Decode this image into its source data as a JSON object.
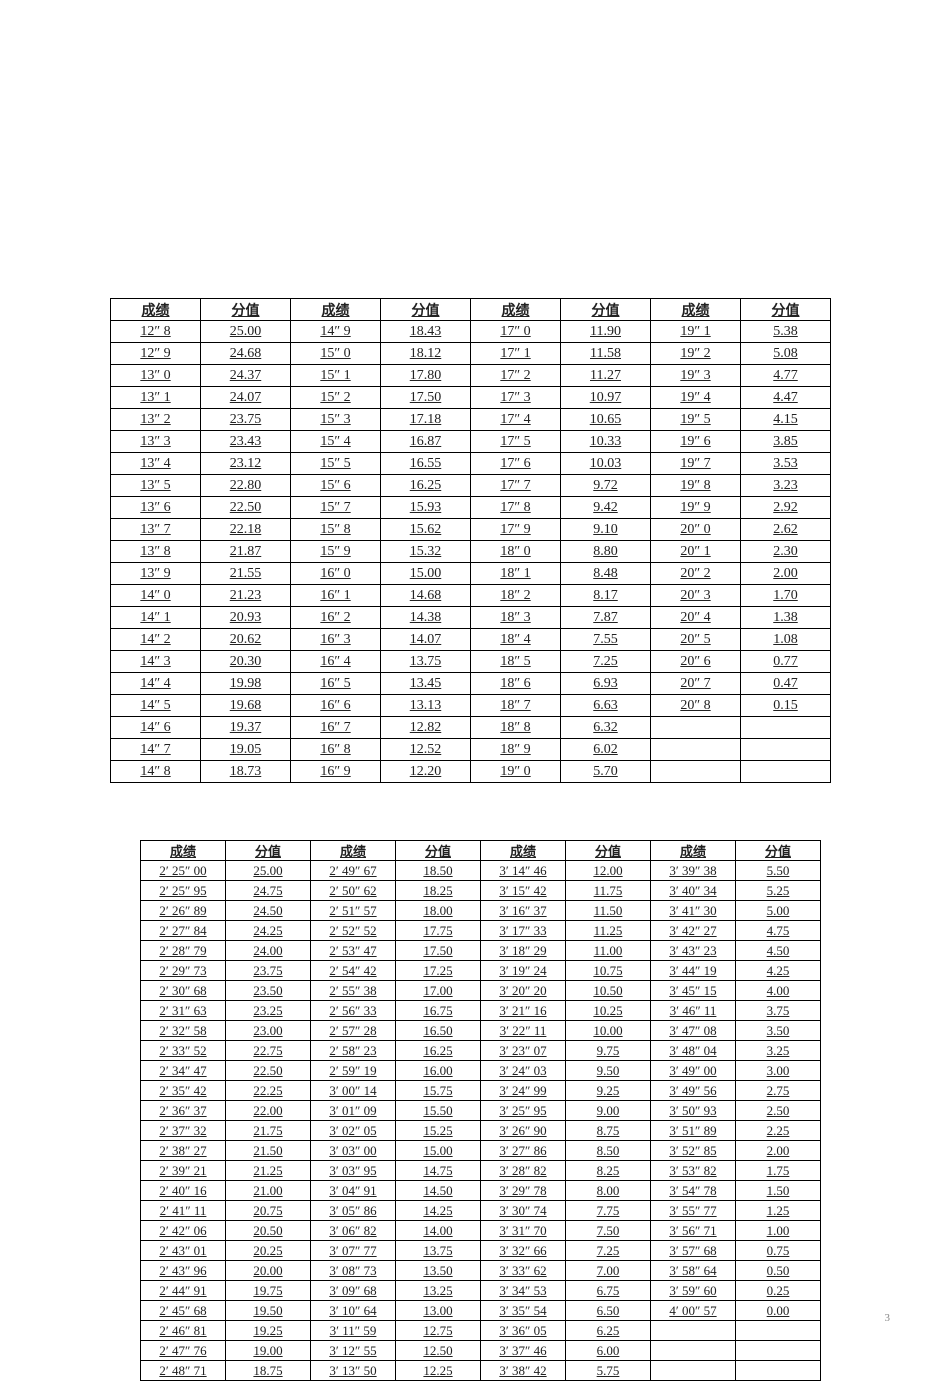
{
  "page_number": "3",
  "table1": {
    "headers": [
      "成绩",
      "分值",
      "成绩",
      "分值",
      "成绩",
      "分值",
      "成绩",
      "分值"
    ],
    "rows": [
      [
        "12″ 8",
        "25.00",
        "14″ 9",
        "18.43",
        "17″ 0",
        "11.90",
        "19″ 1",
        "5.38"
      ],
      [
        "12″ 9",
        "24.68",
        "15″ 0",
        "18.12",
        "17″ 1",
        "11.58",
        "19″ 2",
        "5.08"
      ],
      [
        "13″ 0",
        "24.37",
        "15″ 1",
        "17.80",
        "17″ 2",
        "11.27",
        "19″ 3",
        "4.77"
      ],
      [
        "13″ 1",
        "24.07",
        "15″ 2",
        "17.50",
        "17″ 3",
        "10.97",
        "19″ 4",
        "4.47"
      ],
      [
        "13″ 2",
        "23.75",
        "15″ 3",
        "17.18",
        "17″ 4",
        "10.65",
        "19″ 5",
        "4.15"
      ],
      [
        "13″ 3",
        "23.43",
        "15″ 4",
        "16.87",
        "17″ 5",
        "10.33",
        "19″ 6",
        "3.85"
      ],
      [
        "13″ 4",
        "23.12",
        "15″ 5",
        "16.55",
        "17″ 6",
        "10.03",
        "19″ 7",
        "3.53"
      ],
      [
        "13″ 5",
        "22.80",
        "15″ 6",
        "16.25",
        "17″ 7",
        "9.72",
        "19″ 8",
        "3.23"
      ],
      [
        "13″ 6",
        "22.50",
        "15″ 7",
        "15.93",
        "17″ 8",
        "9.42",
        "19″ 9",
        "2.92"
      ],
      [
        "13″ 7",
        "22.18",
        "15″ 8",
        "15.62",
        "17″ 9",
        "9.10",
        "20″ 0",
        "2.62"
      ],
      [
        "13″ 8",
        "21.87",
        "15″ 9",
        "15.32",
        "18″ 0",
        "8.80",
        "20″ 1",
        "2.30"
      ],
      [
        "13″ 9",
        "21.55",
        "16″ 0",
        "15.00",
        "18″ 1",
        "8.48",
        "20″ 2",
        "2.00"
      ],
      [
        "14″ 0",
        "21.23",
        "16″ 1",
        "14.68",
        "18″ 2",
        "8.17",
        "20″ 3",
        "1.70"
      ],
      [
        "14″ 1",
        "20.93",
        "16″ 2",
        "14.38",
        "18″ 3",
        "7.87",
        "20″ 4",
        "1.38"
      ],
      [
        "14″ 2",
        "20.62",
        "16″ 3",
        "14.07",
        "18″ 4",
        "7.55",
        "20″ 5",
        "1.08"
      ],
      [
        "14″ 3",
        "20.30",
        "16″ 4",
        "13.75",
        "18″ 5",
        "7.25",
        "20″ 6",
        "0.77"
      ],
      [
        "14″ 4",
        "19.98",
        "16″ 5",
        "13.45",
        "18″ 6",
        "6.93",
        "20″ 7",
        "0.47"
      ],
      [
        "14″ 5",
        "19.68",
        "16″ 6",
        "13.13",
        "18″ 7",
        "6.63",
        "20″ 8",
        "0.15"
      ],
      [
        "14″ 6",
        "19.37",
        "16″ 7",
        "12.82",
        "18″ 8",
        "6.32",
        "",
        ""
      ],
      [
        "14″ 7",
        "19.05",
        "16″ 8",
        "12.52",
        "18″ 9",
        "6.02",
        "",
        ""
      ],
      [
        "14″ 8",
        "18.73",
        "16″ 9",
        "12.20",
        "19″ 0",
        "5.70",
        "",
        ""
      ]
    ]
  },
  "table2": {
    "headers": [
      "成绩",
      "分值",
      "成绩",
      "分值",
      "成绩",
      "分值",
      "成绩",
      "分值"
    ],
    "rows": [
      [
        "2′ 25″ 00",
        "25.00",
        "2′ 49″ 67",
        "18.50",
        "3′ 14″ 46",
        "12.00",
        "3′ 39″ 38",
        "5.50"
      ],
      [
        "2′ 25″ 95",
        "24.75",
        "2′ 50″ 62",
        "18.25",
        "3′ 15″ 42",
        "11.75",
        "3′ 40″ 34",
        "5.25"
      ],
      [
        "2′ 26″ 89",
        "24.50",
        "2′ 51″ 57",
        "18.00",
        "3′ 16″ 37",
        "11.50",
        "3′ 41″ 30",
        "5.00"
      ],
      [
        "2′ 27″ 84",
        "24.25",
        "2′ 52″ 52",
        "17.75",
        "3′ 17″ 33",
        "11.25",
        "3′ 42″ 27",
        "4.75"
      ],
      [
        "2′ 28″ 79",
        "24.00",
        "2′ 53″ 47",
        "17.50",
        "3′ 18″ 29",
        "11.00",
        "3′ 43″ 23",
        "4.50"
      ],
      [
        "2′ 29″ 73",
        "23.75",
        "2′ 54″ 42",
        "17.25",
        "3′ 19″ 24",
        "10.75",
        "3′ 44″ 19",
        "4.25"
      ],
      [
        "2′ 30″ 68",
        "23.50",
        "2′ 55″ 38",
        "17.00",
        "3′ 20″ 20",
        "10.50",
        "3′ 45″ 15",
        "4.00"
      ],
      [
        "2′ 31″ 63",
        "23.25",
        "2′ 56″ 33",
        "16.75",
        "3′ 21″ 16",
        "10.25",
        "3′ 46″ 11",
        "3.75"
      ],
      [
        "2′ 32″ 58",
        "23.00",
        "2′ 57″ 28",
        "16.50",
        "3′ 22″ 11",
        "10.00",
        "3′ 47″ 08",
        "3.50"
      ],
      [
        "2′ 33″ 52",
        "22.75",
        "2′ 58″ 23",
        "16.25",
        "3′ 23″ 07",
        "9.75",
        "3′ 48″ 04",
        "3.25"
      ],
      [
        "2′ 34″ 47",
        "22.50",
        "2′ 59″ 19",
        "16.00",
        "3′ 24″ 03",
        "9.50",
        "3′ 49″ 00",
        "3.00"
      ],
      [
        "2′ 35″ 42",
        "22.25",
        "3′ 00″ 14",
        "15.75",
        "3′ 24″ 99",
        "9.25",
        "3′ 49″ 56",
        "2.75"
      ],
      [
        "2′ 36″ 37",
        "22.00",
        "3′ 01″ 09",
        "15.50",
        "3′ 25″ 95",
        "9.00",
        "3′ 50″ 93",
        "2.50"
      ],
      [
        "2′ 37″ 32",
        "21.75",
        "3′ 02″ 05",
        "15.25",
        "3′ 26″ 90",
        "8.75",
        "3′ 51″ 89",
        "2.25"
      ],
      [
        "2′ 38″ 27",
        "21.50",
        "3′ 03″ 00",
        "15.00",
        "3′ 27″ 86",
        "8.50",
        "3′ 52″ 85",
        "2.00"
      ],
      [
        "2′ 39″ 21",
        "21.25",
        "3′ 03″ 95",
        "14.75",
        "3′ 28″ 82",
        "8.25",
        "3′ 53″ 82",
        "1.75"
      ],
      [
        "2′ 40″ 16",
        "21.00",
        "3′ 04″ 91",
        "14.50",
        "3′ 29″ 78",
        "8.00",
        "3′ 54″ 78",
        "1.50"
      ],
      [
        "2′ 41″ 11",
        "20.75",
        "3′ 05″ 86",
        "14.25",
        "3′ 30″ 74",
        "7.75",
        "3′ 55″ 77",
        "1.25"
      ],
      [
        "2′ 42″ 06",
        "20.50",
        "3′ 06″ 82",
        "14.00",
        "3′ 31″ 70",
        "7.50",
        "3′ 56″ 71",
        "1.00"
      ],
      [
        "2′ 43″ 01",
        "20.25",
        "3′ 07″ 77",
        "13.75",
        "3′ 32″ 66",
        "7.25",
        "3′ 57″ 68",
        "0.75"
      ],
      [
        "2′ 43″ 96",
        "20.00",
        "3′ 08″ 73",
        "13.50",
        "3′ 33″ 62",
        "7.00",
        "3′ 58″ 64",
        "0.50"
      ],
      [
        "2′ 44″ 91",
        "19.75",
        "3′ 09″ 68",
        "13.25",
        "3′ 34″ 53",
        "6.75",
        "3′ 59″ 60",
        "0.25"
      ],
      [
        "2′ 45″ 68",
        "19.50",
        "3′ 10″ 64",
        "13.00",
        "3′ 35″ 54",
        "6.50",
        "4′ 00″ 57",
        "0.00"
      ],
      [
        "2′ 46″ 81",
        "19.25",
        "3′ 11″ 59",
        "12.75",
        "3′ 36″ 05",
        "6.25",
        "",
        ""
      ],
      [
        "2′ 47″ 76",
        "19.00",
        "3′ 12″ 55",
        "12.50",
        "3′ 37″ 46",
        "6.00",
        "",
        ""
      ],
      [
        "2′ 48″ 71",
        "18.75",
        "3′ 13″ 50",
        "12.25",
        "3′ 38″ 42",
        "5.75",
        "",
        ""
      ]
    ]
  }
}
